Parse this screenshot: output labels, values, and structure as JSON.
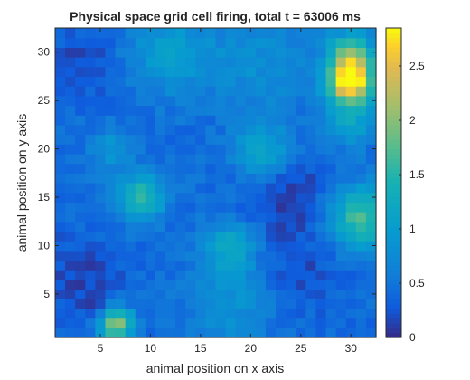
{
  "chart_data": {
    "type": "heatmap",
    "title": "Physical space grid cell firing, total t = 63006 ms",
    "xlabel": "animal position on x axis",
    "ylabel": "animal position on y axis",
    "xlim": [
      0.5,
      32.5
    ],
    "ylim": [
      0.5,
      32.5
    ],
    "x_ticks": [
      5,
      10,
      15,
      20,
      25,
      30
    ],
    "y_ticks": [
      5,
      10,
      15,
      20,
      25,
      30
    ],
    "grid_size": [
      32,
      32
    ],
    "colormap": "parula",
    "colorbar": {
      "range": [
        0,
        2.85
      ],
      "ticks": [
        0,
        0.5,
        1,
        1.5,
        2,
        2.5
      ],
      "tick_labels": [
        "0",
        "0.5",
        "1",
        "1.5",
        "2",
        "2.5"
      ]
    },
    "baseline_value": 0.42,
    "firing_fields": [
      {
        "x": 30,
        "y": 27,
        "peak": 2.45,
        "spread": 1.6
      },
      {
        "x": 30,
        "y": 30,
        "peak": 1.3,
        "spread": 1.6
      },
      {
        "x": 30,
        "y": 23,
        "peak": 0.7,
        "spread": 1.8
      },
      {
        "x": 31,
        "y": 13,
        "peak": 1.3,
        "spread": 2.2
      },
      {
        "x": 9,
        "y": 15,
        "peak": 1.15,
        "spread": 1.7
      },
      {
        "x": 6.5,
        "y": 2,
        "peak": 1.75,
        "spread": 1.2
      },
      {
        "x": 21,
        "y": 20,
        "peak": 0.75,
        "spread": 2.0
      },
      {
        "x": 18,
        "y": 10,
        "peak": 0.8,
        "spread": 1.8
      },
      {
        "x": 18,
        "y": 4,
        "peak": 0.45,
        "spread": 3.0
      },
      {
        "x": 12,
        "y": 30,
        "peak": 0.6,
        "spread": 3.0
      },
      {
        "x": 6,
        "y": 20,
        "peak": 0.5,
        "spread": 1.5
      },
      {
        "x": 21,
        "y": 29,
        "peak": 0.4,
        "spread": 3.5
      }
    ],
    "low_activity_spots": [
      {
        "x": 5,
        "y": 3,
        "depth": 0.4,
        "spread": 1.0
      },
      {
        "x": 24,
        "y": 15,
        "depth": 0.3,
        "spread": 3.0
      },
      {
        "x": 3,
        "y": 7,
        "depth": 0.25,
        "spread": 3.0
      },
      {
        "x": 25,
        "y": 7,
        "depth": 0.2,
        "spread": 3.0
      },
      {
        "x": 3,
        "y": 29,
        "depth": 0.25,
        "spread": 2.5
      }
    ]
  }
}
